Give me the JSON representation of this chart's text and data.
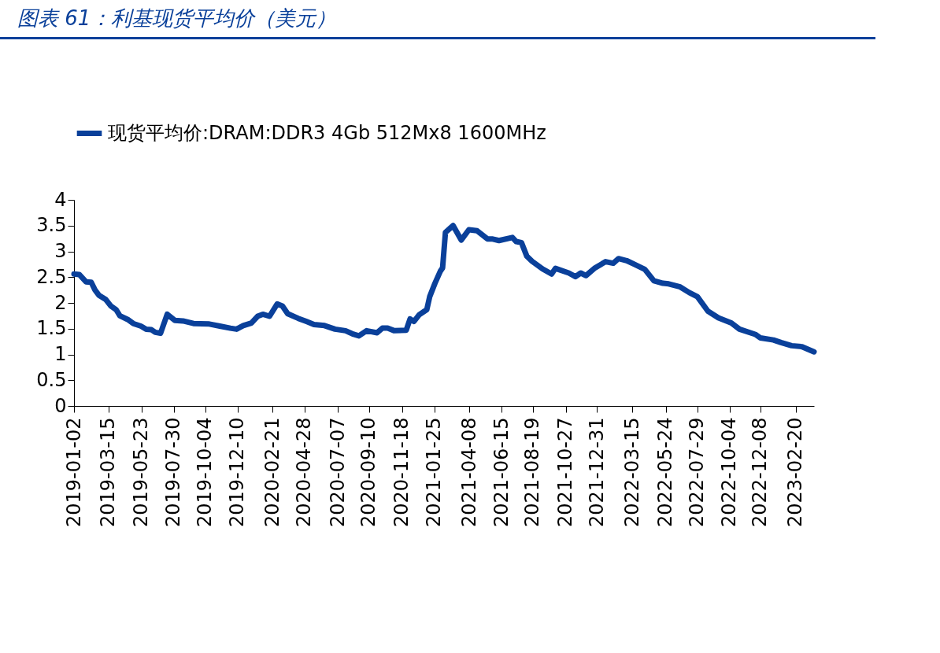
{
  "chart_data": {
    "type": "line",
    "title": "图表 61：利基现货平均价（美元）",
    "x": [
      "2019-01-02",
      "2019-01-13",
      "2019-01-27",
      "2019-02-07",
      "2019-02-15",
      "2019-02-23",
      "2019-03-09",
      "2019-03-20",
      "2019-03-31",
      "2019-04-08",
      "2019-04-24",
      "2019-05-06",
      "2019-05-22",
      "2019-06-02",
      "2019-06-13",
      "2019-06-21",
      "2019-07-02",
      "2019-07-16",
      "2019-08-01",
      "2019-08-18",
      "2019-09-09",
      "2019-10-12",
      "2019-11-03",
      "2019-11-25",
      "2019-12-08",
      "2019-12-22",
      "2020-01-08",
      "2020-01-21",
      "2020-02-01",
      "2020-02-15",
      "2020-03-02",
      "2020-03-13",
      "2020-03-24",
      "2020-04-15",
      "2020-05-02",
      "2020-05-18",
      "2020-06-09",
      "2020-07-01",
      "2020-07-23",
      "2020-08-09",
      "2020-08-20",
      "2020-09-05",
      "2020-09-27",
      "2020-10-08",
      "2020-10-19",
      "2020-11-02",
      "2020-11-27",
      "2020-12-05",
      "2020-12-13",
      "2020-12-24",
      "2021-01-09",
      "2021-01-15",
      "2021-01-26",
      "2021-02-06",
      "2021-02-11",
      "2021-02-17",
      "2021-03-05",
      "2021-03-22",
      "2021-04-07",
      "2021-04-24",
      "2021-05-16",
      "2021-05-27",
      "2021-06-09",
      "2021-07-07",
      "2021-07-15",
      "2021-07-26",
      "2021-08-06",
      "2021-08-17",
      "2021-09-08",
      "2021-09-27",
      "2021-10-05",
      "2021-11-02",
      "2021-11-16",
      "2021-11-27",
      "2021-12-08",
      "2021-12-27",
      "2022-01-18",
      "2022-02-03",
      "2022-02-14",
      "2022-03-03",
      "2022-03-19",
      "2022-04-10",
      "2022-04-29",
      "2022-05-18",
      "2022-05-30",
      "2022-06-23",
      "2022-07-12",
      "2022-07-29",
      "2022-08-20",
      "2022-09-11",
      "2022-10-08",
      "2022-10-25",
      "2022-11-27",
      "2022-12-08",
      "2023-01-04",
      "2023-01-20",
      "2023-02-11",
      "2023-03-05",
      "2023-03-30"
    ],
    "series": [
      {
        "name": "现货平均价:DRAM:DDR3 4Gb 512Mx8 1600MHz",
        "color": "#0a409a",
        "values": [
          2.56,
          2.55,
          2.41,
          2.4,
          2.25,
          2.15,
          2.07,
          1.94,
          1.87,
          1.75,
          1.68,
          1.6,
          1.55,
          1.49,
          1.48,
          1.43,
          1.41,
          1.78,
          1.66,
          1.65,
          1.6,
          1.59,
          1.55,
          1.51,
          1.49,
          1.56,
          1.61,
          1.74,
          1.78,
          1.74,
          1.98,
          1.94,
          1.79,
          1.7,
          1.64,
          1.58,
          1.56,
          1.49,
          1.46,
          1.39,
          1.36,
          1.46,
          1.42,
          1.51,
          1.51,
          1.46,
          1.47,
          1.69,
          1.64,
          1.77,
          1.87,
          2.12,
          2.38,
          2.61,
          2.68,
          3.37,
          3.5,
          3.22,
          3.42,
          3.4,
          3.24,
          3.24,
          3.21,
          3.27,
          3.19,
          3.17,
          2.91,
          2.81,
          2.66,
          2.56,
          2.67,
          2.58,
          2.51,
          2.58,
          2.53,
          2.68,
          2.8,
          2.77,
          2.86,
          2.82,
          2.75,
          2.65,
          2.43,
          2.38,
          2.37,
          2.31,
          2.2,
          2.12,
          1.84,
          1.71,
          1.61,
          1.49,
          1.39,
          1.32,
          1.28,
          1.23,
          1.17,
          1.15,
          1.05
        ]
      }
    ],
    "xlim": [
      "2019-01-02",
      "2023-03-30"
    ],
    "xticks": [
      "2019-01-02",
      "2019-03-15",
      "2019-05-23",
      "2019-07-30",
      "2019-10-04",
      "2019-12-10",
      "2020-02-21",
      "2020-04-28",
      "2020-07-07",
      "2020-09-10",
      "2020-11-18",
      "2021-01-25",
      "2021-04-08",
      "2021-06-15",
      "2021-08-19",
      "2021-10-27",
      "2021-12-31",
      "2022-03-15",
      "2022-05-24",
      "2022-07-29",
      "2022-10-04",
      "2022-12-08",
      "2023-02-20"
    ],
    "ylim": [
      0,
      4
    ],
    "yticks": [
      0,
      0.5,
      1,
      1.5,
      2,
      2.5,
      3,
      3.5,
      4
    ],
    "legend": "top"
  }
}
